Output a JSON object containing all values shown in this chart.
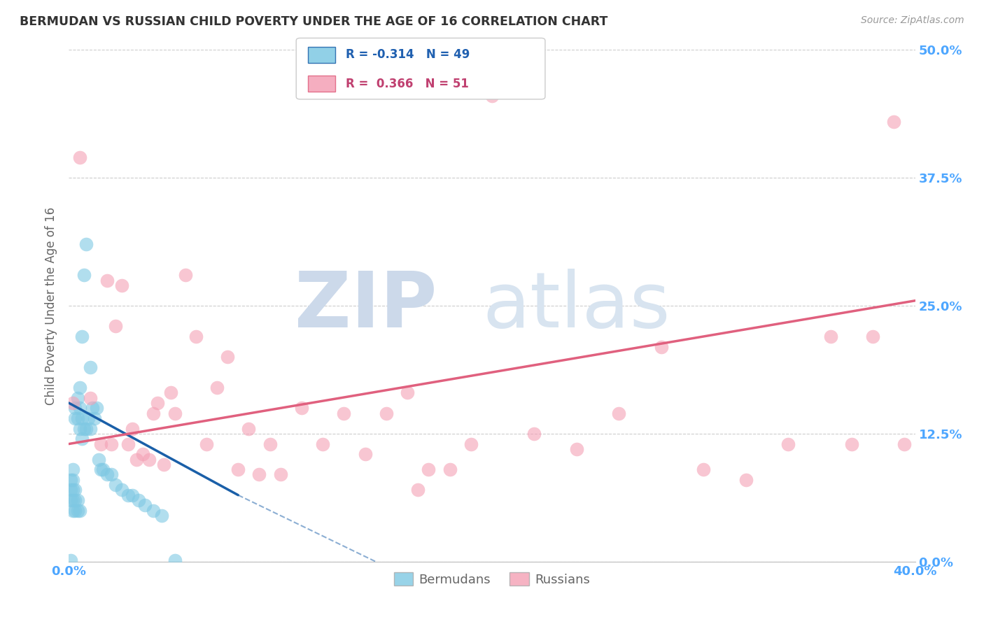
{
  "title": "BERMUDAN VS RUSSIAN CHILD POVERTY UNDER THE AGE OF 16 CORRELATION CHART",
  "source": "Source: ZipAtlas.com",
  "xlabel_bermuda": "Bermudans",
  "xlabel_russian": "Russians",
  "ylabel": "Child Poverty Under the Age of 16",
  "xlim": [
    0.0,
    0.4
  ],
  "ylim": [
    0.0,
    0.5
  ],
  "ytick_labels": [
    "0.0%",
    "12.5%",
    "25.0%",
    "37.5%",
    "50.0%"
  ],
  "yticks": [
    0.0,
    0.125,
    0.25,
    0.375,
    0.5
  ],
  "legend_bermuda_R": "-0.314",
  "legend_bermuda_N": "49",
  "legend_russian_R": "0.366",
  "legend_russian_N": "51",
  "color_bermuda": "#7ec8e3",
  "color_russian": "#f4a0b5",
  "color_trend_bermuda": "#1a5fa8",
  "color_trend_russian": "#e0607e",
  "color_axis_labels": "#4da6ff",
  "bermuda_x": [
    0.001,
    0.001,
    0.001,
    0.001,
    0.002,
    0.002,
    0.002,
    0.002,
    0.002,
    0.003,
    0.003,
    0.003,
    0.003,
    0.003,
    0.004,
    0.004,
    0.004,
    0.004,
    0.005,
    0.005,
    0.005,
    0.005,
    0.006,
    0.006,
    0.006,
    0.007,
    0.007,
    0.008,
    0.008,
    0.009,
    0.01,
    0.01,
    0.011,
    0.012,
    0.013,
    0.014,
    0.015,
    0.016,
    0.018,
    0.02,
    0.022,
    0.025,
    0.028,
    0.03,
    0.033,
    0.036,
    0.04,
    0.044,
    0.05
  ],
  "bermuda_y": [
    0.001,
    0.06,
    0.07,
    0.08,
    0.05,
    0.06,
    0.07,
    0.08,
    0.09,
    0.05,
    0.06,
    0.07,
    0.14,
    0.15,
    0.05,
    0.06,
    0.14,
    0.16,
    0.05,
    0.13,
    0.15,
    0.17,
    0.12,
    0.14,
    0.22,
    0.13,
    0.28,
    0.13,
    0.31,
    0.14,
    0.13,
    0.19,
    0.15,
    0.14,
    0.15,
    0.1,
    0.09,
    0.09,
    0.085,
    0.085,
    0.075,
    0.07,
    0.065,
    0.065,
    0.06,
    0.055,
    0.05,
    0.045,
    0.001
  ],
  "russian_x": [
    0.002,
    0.005,
    0.01,
    0.015,
    0.018,
    0.02,
    0.022,
    0.025,
    0.028,
    0.03,
    0.032,
    0.035,
    0.038,
    0.04,
    0.042,
    0.045,
    0.048,
    0.05,
    0.055,
    0.06,
    0.065,
    0.07,
    0.075,
    0.08,
    0.085,
    0.09,
    0.095,
    0.1,
    0.11,
    0.12,
    0.13,
    0.14,
    0.15,
    0.16,
    0.165,
    0.17,
    0.18,
    0.19,
    0.2,
    0.22,
    0.24,
    0.26,
    0.28,
    0.3,
    0.32,
    0.34,
    0.36,
    0.37,
    0.38,
    0.39,
    0.395
  ],
  "russian_y": [
    0.155,
    0.395,
    0.16,
    0.115,
    0.275,
    0.115,
    0.23,
    0.27,
    0.115,
    0.13,
    0.1,
    0.105,
    0.1,
    0.145,
    0.155,
    0.095,
    0.165,
    0.145,
    0.28,
    0.22,
    0.115,
    0.17,
    0.2,
    0.09,
    0.13,
    0.085,
    0.115,
    0.085,
    0.15,
    0.115,
    0.145,
    0.105,
    0.145,
    0.165,
    0.07,
    0.09,
    0.09,
    0.115,
    0.455,
    0.125,
    0.11,
    0.145,
    0.21,
    0.09,
    0.08,
    0.115,
    0.22,
    0.115,
    0.22,
    0.43,
    0.115
  ],
  "trend_b_x0": 0.0,
  "trend_b_x1": 0.08,
  "trend_b_y0": 0.155,
  "trend_b_y1": 0.065,
  "trend_b_dash_x0": 0.08,
  "trend_b_dash_x1": 0.155,
  "trend_b_dash_y0": 0.065,
  "trend_b_dash_y1": -0.01,
  "trend_r_x0": 0.0,
  "trend_r_x1": 0.4,
  "trend_r_y0": 0.115,
  "trend_r_y1": 0.255
}
